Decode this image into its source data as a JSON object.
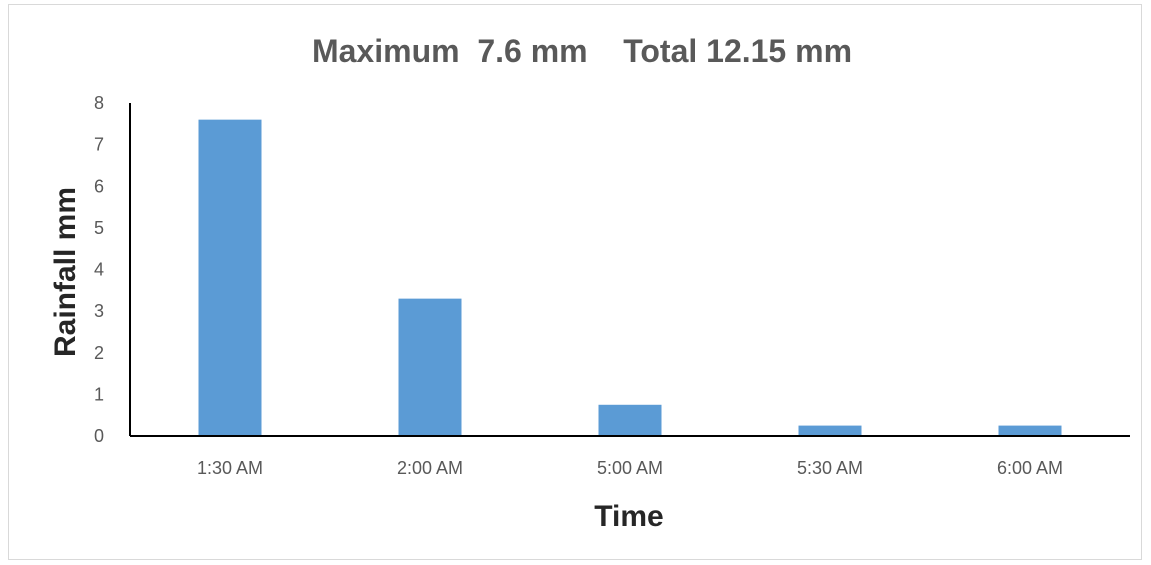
{
  "chart_data": {
    "type": "bar",
    "title": "Maximum  7.6 mm    Total 12.15 mm",
    "xlabel": "Time",
    "ylabel": "Rainfall mm",
    "categories": [
      "1:30 AM",
      "2:00 AM",
      "5:00 AM",
      "5:30 AM",
      "6:00 AM"
    ],
    "values": [
      7.6,
      3.3,
      0.75,
      0.25,
      0.25
    ],
    "ylim": [
      0,
      8
    ],
    "yticks": [
      0,
      1,
      2,
      3,
      4,
      5,
      6,
      7,
      8
    ],
    "grid": false,
    "legend": "none",
    "bar_color": "#5b9bd5"
  }
}
